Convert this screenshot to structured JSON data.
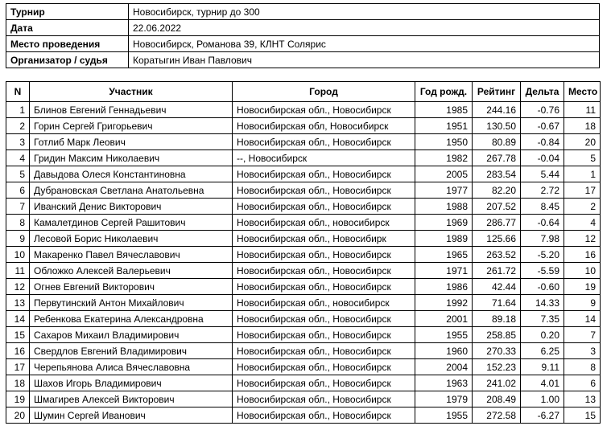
{
  "info": [
    {
      "label": "Турнир",
      "value": "Новосибирск, турнир до 300"
    },
    {
      "label": "Дата",
      "value": "22.06.2022"
    },
    {
      "label": "Место проведения",
      "value": "Новосибирск, Романова 39, КЛНТ Солярис"
    },
    {
      "label": "Организатор / судья",
      "value": "Коратыгин Иван Павлович"
    }
  ],
  "results": {
    "headers": [
      "N",
      "Участник",
      "Город",
      "Год рожд.",
      "Рейтинг",
      "Дельта",
      "Место"
    ],
    "rows": [
      [
        "1",
        "Блинов Евгений Геннадьевич",
        "Новосибирская обл., Новосибирск",
        "1985",
        "244.16",
        "-0.76",
        "11"
      ],
      [
        "2",
        "Горин Сергей Григорьевич",
        "Новосибирская обл, Новосибирск",
        "1951",
        "130.50",
        "-0.67",
        "18"
      ],
      [
        "3",
        "Готлиб Марк Леович",
        "Новосибирская обл., Новосибирск",
        "1950",
        "80.89",
        "-0.84",
        "20"
      ],
      [
        "4",
        "Гридин Максим Николаевич",
        "--, Новосибирск",
        "1982",
        "267.78",
        "-0.04",
        "5"
      ],
      [
        "5",
        "Давыдова Олеся Константиновна",
        "Новосибирская обл., Новосибирск",
        "2005",
        "283.54",
        "5.44",
        "1"
      ],
      [
        "6",
        "Дубрановская Светлана Анатольевна",
        "Новосибирская обл., Новосибирск",
        "1977",
        "82.20",
        "2.72",
        "17"
      ],
      [
        "7",
        "Иванский Денис Викторович",
        "Новосибирская обл., Новосибирск",
        "1988",
        "207.52",
        "8.45",
        "2"
      ],
      [
        "8",
        "Камалетдинов Сергей Рашитович",
        "Новосибирская обл., новосибирск",
        "1969",
        "286.77",
        "-0.64",
        "4"
      ],
      [
        "9",
        "Лесовой Борис Николаевич",
        "Новосибирская обл., Новосибирк",
        "1989",
        "125.66",
        "7.98",
        "12"
      ],
      [
        "10",
        "Макаренко Павел Вячеславович",
        "Новосибирская обл., Новосибирск",
        "1965",
        "263.52",
        "-5.20",
        "16"
      ],
      [
        "11",
        "Обложко Алексей Валерьевич",
        "Новосибирская обл., Новосибирск",
        "1971",
        "261.72",
        "-5.59",
        "10"
      ],
      [
        "12",
        "Огнев Евгений Викторович",
        "Новосибирская обл., Новосибирск",
        "1986",
        "42.44",
        "-0.60",
        "19"
      ],
      [
        "13",
        "Первутинский Антон Михайлович",
        "Новосибирская обл., новосибирск",
        "1992",
        "71.64",
        "14.33",
        "9"
      ],
      [
        "14",
        "Ребенкова Екатерина Александровна",
        "Новосибирская обл., Новосибирск",
        "2001",
        "89.18",
        "7.35",
        "14"
      ],
      [
        "15",
        "Сахаров Михаил Владимирович",
        "Новосибирская обл., Новосибирск",
        "1955",
        "258.85",
        "0.20",
        "7"
      ],
      [
        "16",
        "Свердлов Евгений Владимирович",
        "Новосибирская обл., Новосибирск",
        "1960",
        "270.33",
        "6.25",
        "3"
      ],
      [
        "17",
        "Черепьянова Алиса Вячеславовна",
        "Новосибирская обл., Новосибирск",
        "2004",
        "152.23",
        "9.11",
        "8"
      ],
      [
        "18",
        "Шахов Игорь Владимирович",
        "Новосибирская обл., Новосибирск",
        "1963",
        "241.02",
        "4.01",
        "6"
      ],
      [
        "19",
        "Шмагирев Алексей Викторович",
        "Новосибирская обл., Новосибирск",
        "1979",
        "208.49",
        "1.00",
        "13"
      ],
      [
        "20",
        "Шумин Сергей Иванович",
        "Новосибирская обл., Новосибирск",
        "1955",
        "272.58",
        "-6.27",
        "15"
      ]
    ]
  }
}
